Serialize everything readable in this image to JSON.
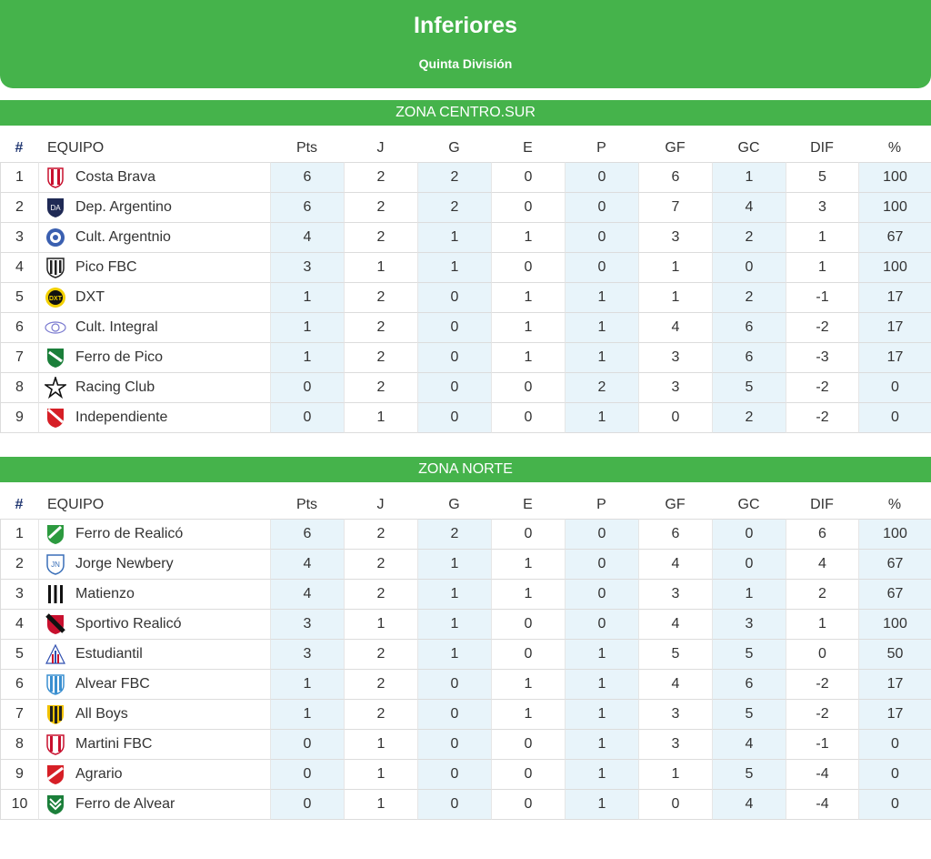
{
  "header": {
    "title": "Inferiores",
    "subtitle": "Quinta División"
  },
  "columns": [
    "#",
    "EQUIPO",
    "Pts",
    "J",
    "G",
    "E",
    "P",
    "GF",
    "GC",
    "DIF",
    "%"
  ],
  "zones": [
    {
      "name": "ZONA CENTRO.SUR",
      "rows": [
        {
          "pos": "1",
          "team": "Costa Brava",
          "crest": "costa-brava-crest-icon",
          "pts": "6",
          "j": "2",
          "g": "2",
          "e": "0",
          "p": "0",
          "gf": "6",
          "gc": "1",
          "dif": "5",
          "pct": "100"
        },
        {
          "pos": "2",
          "team": "Dep. Argentino",
          "crest": "dep-argentino-crest-icon",
          "pts": "6",
          "j": "2",
          "g": "2",
          "e": "0",
          "p": "0",
          "gf": "7",
          "gc": "4",
          "dif": "3",
          "pct": "100"
        },
        {
          "pos": "3",
          "team": "Cult. Argentnio",
          "crest": "cult-argentino-crest-icon",
          "pts": "4",
          "j": "2",
          "g": "1",
          "e": "1",
          "p": "0",
          "gf": "3",
          "gc": "2",
          "dif": "1",
          "pct": "67"
        },
        {
          "pos": "4",
          "team": "Pico FBC",
          "crest": "pico-fbc-crest-icon",
          "pts": "3",
          "j": "1",
          "g": "1",
          "e": "0",
          "p": "0",
          "gf": "1",
          "gc": "0",
          "dif": "1",
          "pct": "100"
        },
        {
          "pos": "5",
          "team": "DXT",
          "crest": "dxt-crest-icon",
          "pts": "1",
          "j": "2",
          "g": "0",
          "e": "1",
          "p": "1",
          "gf": "1",
          "gc": "2",
          "dif": "-1",
          "pct": "17"
        },
        {
          "pos": "6",
          "team": "Cult. Integral",
          "crest": "cult-integral-crest-icon",
          "pts": "1",
          "j": "2",
          "g": "0",
          "e": "1",
          "p": "1",
          "gf": "4",
          "gc": "6",
          "dif": "-2",
          "pct": "17"
        },
        {
          "pos": "7",
          "team": "Ferro de Pico",
          "crest": "ferro-de-pico-crest-icon",
          "pts": "1",
          "j": "2",
          "g": "0",
          "e": "1",
          "p": "1",
          "gf": "3",
          "gc": "6",
          "dif": "-3",
          "pct": "17"
        },
        {
          "pos": "8",
          "team": "Racing Club",
          "crest": "racing-club-crest-icon",
          "pts": "0",
          "j": "2",
          "g": "0",
          "e": "0",
          "p": "2",
          "gf": "3",
          "gc": "5",
          "dif": "-2",
          "pct": "0"
        },
        {
          "pos": "9",
          "team": "Independiente",
          "crest": "independiente-crest-icon",
          "pts": "0",
          "j": "1",
          "g": "0",
          "e": "0",
          "p": "1",
          "gf": "0",
          "gc": "2",
          "dif": "-2",
          "pct": "0"
        }
      ]
    },
    {
      "name": "ZONA NORTE",
      "rows": [
        {
          "pos": "1",
          "team": "Ferro de Realicó",
          "crest": "ferro-de-realico-crest-icon",
          "pts": "6",
          "j": "2",
          "g": "2",
          "e": "0",
          "p": "0",
          "gf": "6",
          "gc": "0",
          "dif": "6",
          "pct": "100"
        },
        {
          "pos": "2",
          "team": "Jorge Newbery",
          "crest": "jorge-newbery-crest-icon",
          "pts": "4",
          "j": "2",
          "g": "1",
          "e": "1",
          "p": "0",
          "gf": "4",
          "gc": "0",
          "dif": "4",
          "pct": "67"
        },
        {
          "pos": "3",
          "team": "Matienzo",
          "crest": "matienzo-crest-icon",
          "pts": "4",
          "j": "2",
          "g": "1",
          "e": "1",
          "p": "0",
          "gf": "3",
          "gc": "1",
          "dif": "2",
          "pct": "67"
        },
        {
          "pos": "4",
          "team": "Sportivo Realicó",
          "crest": "sportivo-realico-crest-icon",
          "pts": "3",
          "j": "1",
          "g": "1",
          "e": "0",
          "p": "0",
          "gf": "4",
          "gc": "3",
          "dif": "1",
          "pct": "100"
        },
        {
          "pos": "5",
          "team": "Estudiantil",
          "crest": "estudiantil-crest-icon",
          "pts": "3",
          "j": "2",
          "g": "1",
          "e": "0",
          "p": "1",
          "gf": "5",
          "gc": "5",
          "dif": "0",
          "pct": "50"
        },
        {
          "pos": "6",
          "team": "Alvear FBC",
          "crest": "alvear-fbc-crest-icon",
          "pts": "1",
          "j": "2",
          "g": "0",
          "e": "1",
          "p": "1",
          "gf": "4",
          "gc": "6",
          "dif": "-2",
          "pct": "17"
        },
        {
          "pos": "7",
          "team": "All Boys",
          "crest": "all-boys-crest-icon",
          "pts": "1",
          "j": "2",
          "g": "0",
          "e": "1",
          "p": "1",
          "gf": "3",
          "gc": "5",
          "dif": "-2",
          "pct": "17"
        },
        {
          "pos": "8",
          "team": "Martini FBC",
          "crest": "martini-fbc-crest-icon",
          "pts": "0",
          "j": "1",
          "g": "0",
          "e": "0",
          "p": "1",
          "gf": "3",
          "gc": "4",
          "dif": "-1",
          "pct": "0"
        },
        {
          "pos": "9",
          "team": "Agrario",
          "crest": "agrario-crest-icon",
          "pts": "0",
          "j": "1",
          "g": "0",
          "e": "0",
          "p": "1",
          "gf": "1",
          "gc": "5",
          "dif": "-4",
          "pct": "0"
        },
        {
          "pos": "10",
          "team": "Ferro de Alvear",
          "crest": "ferro-de-alvear-crest-icon",
          "pts": "0",
          "j": "1",
          "g": "0",
          "e": "0",
          "p": "1",
          "gf": "0",
          "gc": "4",
          "dif": "-4",
          "pct": "0"
        }
      ]
    }
  ]
}
